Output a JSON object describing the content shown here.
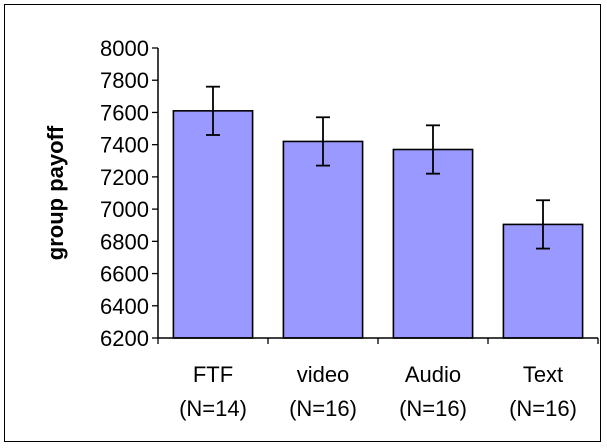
{
  "chart_data": {
    "type": "bar",
    "title": "",
    "xlabel": "",
    "ylabel": "group payoff",
    "categories": [
      [
        "FTF",
        "(N=14)"
      ],
      [
        "video",
        "(N=16)"
      ],
      [
        "Audio",
        "(N=16)"
      ],
      [
        "Text",
        "(N=16)"
      ]
    ],
    "values": [
      7610,
      7420,
      7370,
      6905
    ],
    "error_low": [
      7460,
      7270,
      7220,
      6755
    ],
    "error_high": [
      7760,
      7570,
      7520,
      7055
    ],
    "ylim": [
      6200,
      8000
    ],
    "yticks": [
      6200,
      6400,
      6600,
      6800,
      7000,
      7200,
      7400,
      7600,
      7800,
      8000
    ],
    "grid": false,
    "legend": "none",
    "colors": {
      "bar_fill": "#9999ff",
      "bar_stroke": "#000000",
      "error_bar": "#000000",
      "axis": "#000000"
    }
  }
}
